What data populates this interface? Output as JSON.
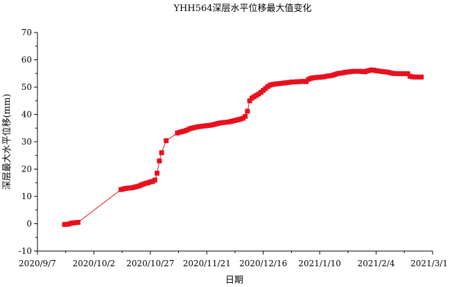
{
  "chart_data": {
    "type": "line",
    "title": "YHH564深层水平位移最大值变化",
    "xlabel": "日期",
    "ylabel": "深层最大水平位移(mm)",
    "ylim": [
      -10,
      70
    ],
    "y_ticks": [
      -10,
      0,
      10,
      20,
      30,
      40,
      50,
      60,
      70
    ],
    "xlim": [
      "2020-09-07",
      "2021-03-01"
    ],
    "x_ticks": [
      "2020/9/7",
      "2020/10/2",
      "2020/10/27",
      "2020/11/21",
      "2020/12/16",
      "2021/1/10",
      "2021/2/4",
      "2021/3/1"
    ],
    "grid": false,
    "series_color": "#e8101e",
    "series": [
      {
        "marker": "square",
        "points": [
          [
            "2020-09-19",
            -0.3
          ],
          [
            "2020-09-20",
            -0.2
          ],
          [
            "2020-09-21",
            -0.1
          ],
          [
            "2020-09-22",
            0.2
          ],
          [
            "2020-09-23",
            0.3
          ],
          [
            "2020-09-24",
            0.4
          ],
          [
            "2020-09-25",
            0.5
          ],
          [
            "2020-10-14",
            12.5
          ],
          [
            "2020-10-15",
            12.7
          ],
          [
            "2020-10-16",
            12.9
          ],
          [
            "2020-10-17",
            13.0
          ],
          [
            "2020-10-18",
            13.1
          ],
          [
            "2020-10-19",
            13.2
          ],
          [
            "2020-10-20",
            13.4
          ],
          [
            "2020-10-21",
            13.6
          ],
          [
            "2020-10-22",
            13.8
          ],
          [
            "2020-10-23",
            14.2
          ],
          [
            "2020-10-24",
            14.5
          ],
          [
            "2020-10-25",
            14.8
          ],
          [
            "2020-10-26",
            15.0
          ],
          [
            "2020-10-27",
            15.3
          ],
          [
            "2020-10-28",
            15.5
          ],
          [
            "2020-10-29",
            16.0
          ],
          [
            "2020-10-30",
            18.5
          ],
          [
            "2020-10-31",
            23.0
          ],
          [
            "2020-11-01",
            26.0
          ],
          [
            "2020-11-03",
            30.4
          ],
          [
            "2020-11-08",
            33.2
          ],
          [
            "2020-11-09",
            33.5
          ],
          [
            "2020-11-10",
            33.7
          ],
          [
            "2020-11-11",
            33.9
          ],
          [
            "2020-11-12",
            34.2
          ],
          [
            "2020-11-13",
            34.6
          ],
          [
            "2020-11-14",
            34.9
          ],
          [
            "2020-11-15",
            35.1
          ],
          [
            "2020-11-16",
            35.3
          ],
          [
            "2020-11-17",
            35.5
          ],
          [
            "2020-11-18",
            35.6
          ],
          [
            "2020-11-19",
            35.7
          ],
          [
            "2020-11-20",
            35.8
          ],
          [
            "2020-11-21",
            35.9
          ],
          [
            "2020-11-22",
            36.0
          ],
          [
            "2020-11-23",
            36.1
          ],
          [
            "2020-11-24",
            36.3
          ],
          [
            "2020-11-25",
            36.5
          ],
          [
            "2020-11-26",
            36.7
          ],
          [
            "2020-11-27",
            36.9
          ],
          [
            "2020-11-28",
            37.0
          ],
          [
            "2020-11-29",
            37.1
          ],
          [
            "2020-11-30",
            37.2
          ],
          [
            "2020-12-01",
            37.3
          ],
          [
            "2020-12-02",
            37.5
          ],
          [
            "2020-12-03",
            37.7
          ],
          [
            "2020-12-04",
            37.9
          ],
          [
            "2020-12-05",
            38.1
          ],
          [
            "2020-12-06",
            38.3
          ],
          [
            "2020-12-07",
            38.6
          ],
          [
            "2020-12-08",
            39.3
          ],
          [
            "2020-12-09",
            41.2
          ],
          [
            "2020-12-10",
            45.0
          ],
          [
            "2020-12-11",
            46.0
          ],
          [
            "2020-12-12",
            46.5
          ],
          [
            "2020-12-13",
            47.0
          ],
          [
            "2020-12-14",
            47.5
          ],
          [
            "2020-12-15",
            48.1
          ],
          [
            "2020-12-16",
            48.8
          ],
          [
            "2020-12-17",
            49.5
          ],
          [
            "2020-12-18",
            50.2
          ],
          [
            "2020-12-19",
            50.7
          ],
          [
            "2020-12-20",
            51.0
          ],
          [
            "2020-12-21",
            51.1
          ],
          [
            "2020-12-22",
            51.2
          ],
          [
            "2020-12-23",
            51.3
          ],
          [
            "2020-12-24",
            51.4
          ],
          [
            "2020-12-25",
            51.5
          ],
          [
            "2020-12-26",
            51.6
          ],
          [
            "2020-12-27",
            51.7
          ],
          [
            "2020-12-28",
            51.8
          ],
          [
            "2020-12-29",
            51.9
          ],
          [
            "2020-12-30",
            51.9
          ],
          [
            "2020-12-31",
            52.0
          ],
          [
            "2021-01-01",
            52.0
          ],
          [
            "2021-01-02",
            52.1
          ],
          [
            "2021-01-03",
            52.1
          ],
          [
            "2021-01-04",
            52.0
          ],
          [
            "2021-01-05",
            52.8
          ],
          [
            "2021-01-06",
            53.2
          ],
          [
            "2021-01-07",
            53.4
          ],
          [
            "2021-01-08",
            53.5
          ],
          [
            "2021-01-09",
            53.6
          ],
          [
            "2021-01-10",
            53.6
          ],
          [
            "2021-01-11",
            53.7
          ],
          [
            "2021-01-12",
            53.8
          ],
          [
            "2021-01-13",
            54.0
          ],
          [
            "2021-01-14",
            54.1
          ],
          [
            "2021-01-15",
            54.2
          ],
          [
            "2021-01-16",
            54.4
          ],
          [
            "2021-01-17",
            54.7
          ],
          [
            "2021-01-18",
            55.0
          ],
          [
            "2021-01-19",
            55.1
          ],
          [
            "2021-01-20",
            55.2
          ],
          [
            "2021-01-21",
            55.4
          ],
          [
            "2021-01-22",
            55.5
          ],
          [
            "2021-01-23",
            55.6
          ],
          [
            "2021-01-24",
            55.7
          ],
          [
            "2021-01-25",
            55.8
          ],
          [
            "2021-01-26",
            55.8
          ],
          [
            "2021-01-27",
            55.8
          ],
          [
            "2021-01-28",
            55.8
          ],
          [
            "2021-01-29",
            55.7
          ],
          [
            "2021-01-30",
            55.6
          ],
          [
            "2021-01-31",
            55.9
          ],
          [
            "2021-02-01",
            56.1
          ],
          [
            "2021-02-02",
            56.3
          ],
          [
            "2021-02-03",
            56.2
          ],
          [
            "2021-02-04",
            56.0
          ],
          [
            "2021-02-05",
            55.9
          ],
          [
            "2021-02-06",
            55.8
          ],
          [
            "2021-02-07",
            55.7
          ],
          [
            "2021-02-08",
            55.6
          ],
          [
            "2021-02-09",
            55.5
          ],
          [
            "2021-02-10",
            55.3
          ],
          [
            "2021-02-11",
            55.1
          ],
          [
            "2021-02-12",
            55.0
          ],
          [
            "2021-02-13",
            55.0
          ],
          [
            "2021-02-14",
            54.9
          ],
          [
            "2021-02-15",
            54.9
          ],
          [
            "2021-02-16",
            54.9
          ],
          [
            "2021-02-17",
            54.9
          ],
          [
            "2021-02-18",
            54.9
          ],
          [
            "2021-02-19",
            54.0
          ],
          [
            "2021-02-20",
            53.8
          ],
          [
            "2021-02-21",
            53.7
          ],
          [
            "2021-02-22",
            53.7
          ],
          [
            "2021-02-23",
            53.7
          ],
          [
            "2021-02-24",
            53.7
          ]
        ]
      }
    ]
  }
}
